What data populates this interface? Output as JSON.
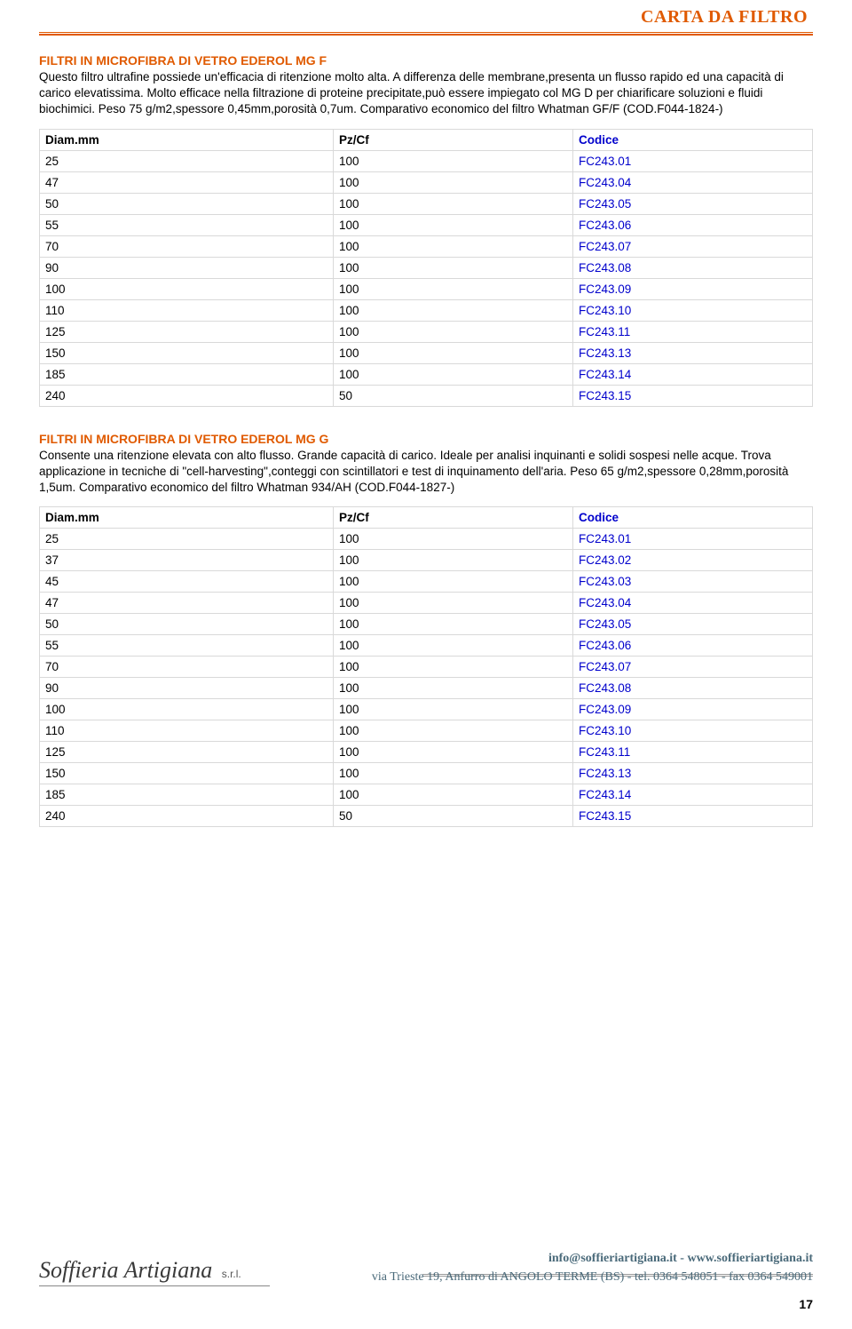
{
  "header": {
    "title": "CARTA DA FILTRO"
  },
  "section1": {
    "title": "FILTRI IN MICROFIBRA DI VETRO EDEROL MG F",
    "desc": "Questo filtro ultrafine possiede un'efficacia di ritenzione molto alta. A differenza delle membrane,presenta un flusso rapido ed una capacità di carico elevatissima. Molto efficace nella filtrazione di proteine precipitate,può essere impiegato col MG D per chiarificare soluzioni e fluidi biochimici. Peso 75 g/m2,spessore 0,45mm,porosità 0,7um. Comparativo economico del filtro Whatman GF/F (COD.F044-1824-)",
    "columns": [
      "Diam.mm",
      "Pz/Cf",
      "Codice"
    ],
    "rows": [
      [
        "25",
        "100",
        "FC243.01"
      ],
      [
        "47",
        "100",
        "FC243.04"
      ],
      [
        "50",
        "100",
        "FC243.05"
      ],
      [
        "55",
        "100",
        "FC243.06"
      ],
      [
        "70",
        "100",
        "FC243.07"
      ],
      [
        "90",
        "100",
        "FC243.08"
      ],
      [
        "100",
        "100",
        "FC243.09"
      ],
      [
        "110",
        "100",
        "FC243.10"
      ],
      [
        "125",
        "100",
        "FC243.11"
      ],
      [
        "150",
        "100",
        "FC243.13"
      ],
      [
        "185",
        "100",
        "FC243.14"
      ],
      [
        "240",
        "50",
        "FC243.15"
      ]
    ]
  },
  "section2": {
    "title": "FILTRI IN MICROFIBRA DI VETRO EDEROL MG G",
    "desc": "Consente una ritenzione elevata con alto flusso. Grande capacità di carico. Ideale per analisi inquinanti e solidi sospesi nelle acque. Trova applicazione in tecniche di \"cell-harvesting\",conteggi con scintillatori e test di inquinamento dell'aria. Peso 65 g/m2,spessore 0,28mm,porosità 1,5um. Comparativo economico del filtro Whatman 934/AH (COD.F044-1827-)",
    "columns": [
      "Diam.mm",
      "Pz/Cf",
      "Codice"
    ],
    "rows": [
      [
        "25",
        "100",
        "FC243.01"
      ],
      [
        "37",
        "100",
        "FC243.02"
      ],
      [
        "45",
        "100",
        "FC243.03"
      ],
      [
        "47",
        "100",
        "FC243.04"
      ],
      [
        "50",
        "100",
        "FC243.05"
      ],
      [
        "55",
        "100",
        "FC243.06"
      ],
      [
        "70",
        "100",
        "FC243.07"
      ],
      [
        "90",
        "100",
        "FC243.08"
      ],
      [
        "100",
        "100",
        "FC243.09"
      ],
      [
        "110",
        "100",
        "FC243.10"
      ],
      [
        "125",
        "100",
        "FC243.11"
      ],
      [
        "150",
        "100",
        "FC243.13"
      ],
      [
        "185",
        "100",
        "FC243.14"
      ],
      [
        "240",
        "50",
        "FC243.15"
      ]
    ]
  },
  "footer": {
    "logo": "Soffieria Artigiana",
    "logo_suffix": "s.r.l.",
    "email_web": "info@soffieriartigiana.it - www.soffieriartigiana.it",
    "address": "via Trieste 19, Anfurro di ANGOLO TERME (BS) - tel. 0364 548051 - fax 0364 549001",
    "page": "17"
  }
}
